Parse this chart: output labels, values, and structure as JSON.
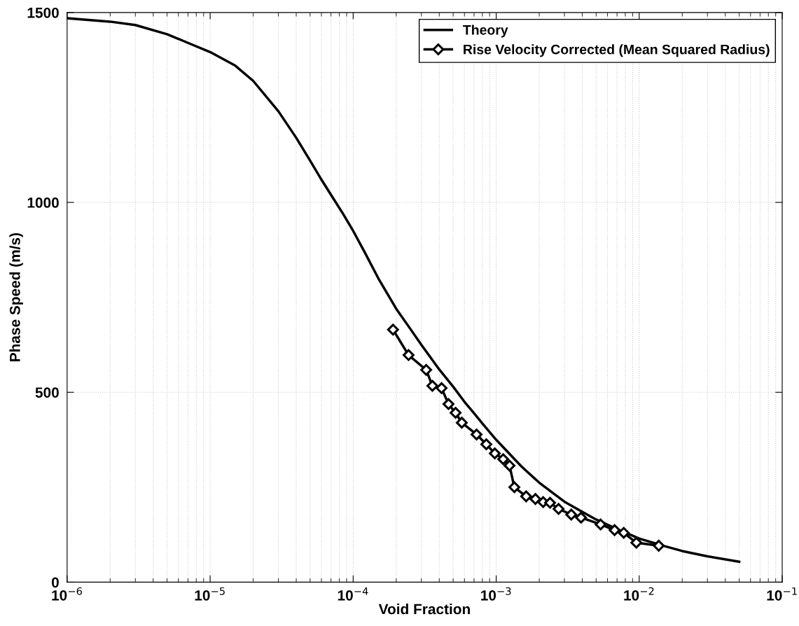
{
  "chart_data": {
    "type": "line",
    "xlabel": "Void Fraction",
    "ylabel": "Phase Speed (m/s)",
    "log": "x",
    "grid": true,
    "legend": "top right",
    "xlim": [
      1e-06,
      0.1
    ],
    "xticks": [
      {
        "value": 1e-06,
        "label": "10$^{−6}$"
      },
      {
        "value": 1e-05,
        "label": "10$^{−5}$"
      },
      {
        "value": 0.0001,
        "label": "10$^{−4}$"
      },
      {
        "value": 0.001,
        "label": "10$^{−3}$"
      },
      {
        "value": 0.01,
        "label": "10$^{−2}$"
      },
      {
        "value": 0.1,
        "label": "10$^{−1}$"
      }
    ],
    "ylim": [
      0,
      1500
    ],
    "yticks": [
      0,
      500,
      1000,
      1500
    ],
    "series": [
      {
        "name": "Theory",
        "color": "#000000",
        "marker": "none",
        "x": [
          1e-06,
          2e-06,
          3e-06,
          5e-06,
          7e-06,
          1e-05,
          1.5e-05,
          2e-05,
          3e-05,
          4e-05,
          5e-05,
          6e-05,
          7e-05,
          8.5e-05,
          0.0001,
          0.00012,
          0.00015,
          0.0002,
          0.00025,
          0.0003,
          0.0004,
          0.0005,
          0.0006,
          0.0007,
          0.0008,
          0.001,
          0.0015,
          0.002,
          0.003,
          0.004,
          0.005,
          0.007,
          0.01,
          0.015,
          0.02,
          0.03,
          0.05
        ],
        "values": [
          1485,
          1476,
          1467,
          1443,
          1420,
          1396,
          1360,
          1320,
          1240,
          1170,
          1110,
          1060,
          1020,
          970,
          925,
          870,
          800,
          720,
          668,
          625,
          560,
          515,
          475,
          445,
          418,
          375,
          305,
          262,
          212,
          185,
          165,
          140,
          115,
          95,
          82,
          68,
          54
        ]
      },
      {
        "name": "Rise Velocity Corrected (Mean Squared Radius)",
        "color": "#000000",
        "marker": "diamond",
        "x": [
          0.00019,
          0.000244,
          0.000324,
          0.000358,
          0.000415,
          0.000464,
          0.00052,
          0.000575,
          0.000729,
          0.000853,
          0.000978,
          0.00112,
          0.00124,
          0.00134,
          0.00162,
          0.00188,
          0.00213,
          0.00238,
          0.00273,
          0.00335,
          0.00392,
          0.00537,
          0.00673,
          0.0078,
          0.00955,
          0.0137
        ],
        "values": [
          665,
          598,
          559,
          517,
          511,
          469,
          446,
          420,
          389,
          363,
          339,
          324,
          307,
          250,
          226,
          219,
          211,
          209,
          193,
          178,
          170,
          152,
          137,
          130,
          104,
          96
        ]
      }
    ]
  }
}
